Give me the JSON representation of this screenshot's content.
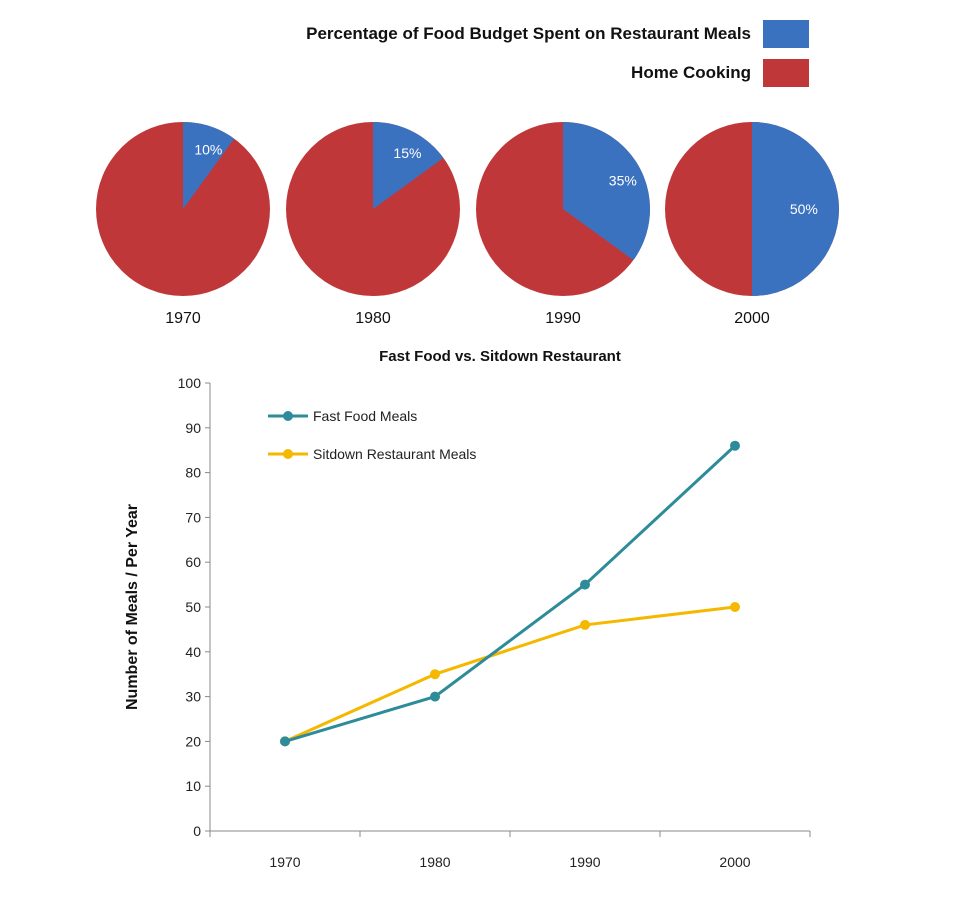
{
  "chart_data": [
    {
      "type": "pie",
      "legend": [
        {
          "label": "Percentage of Food Budget Spent on Restaurant Meals",
          "color": "#3a72c0"
        },
        {
          "label": "Home Cooking",
          "color": "#c0373a"
        }
      ],
      "legend_position": "top-right",
      "pies": [
        {
          "label": "1970",
          "restaurant": 10,
          "home": 90,
          "data_label": "10%"
        },
        {
          "label": "1980",
          "restaurant": 15,
          "home": 85,
          "data_label": "15%"
        },
        {
          "label": "1990",
          "restaurant": 35,
          "home": 65,
          "data_label": "35%"
        },
        {
          "label": "2000",
          "restaurant": 50,
          "home": 50,
          "data_label": "50%"
        }
      ]
    },
    {
      "type": "line",
      "title": "Fast Food vs. Sitdown Restaurant",
      "xlabel": "",
      "ylabel": "Number of Meals / Per Year",
      "categories": [
        "1970",
        "1980",
        "1990",
        "2000"
      ],
      "ylim": [
        0,
        100
      ],
      "yticks": [
        "0",
        "10",
        "20",
        "30",
        "40",
        "50",
        "60",
        "70",
        "80",
        "90",
        "100"
      ],
      "grid": false,
      "legend_position": "top-left",
      "series": [
        {
          "name": "Fast Food Meals",
          "color": "#2e8b9a",
          "values": [
            20,
            30,
            55,
            86
          ]
        },
        {
          "name": "Sitdown Restaurant Meals",
          "color": "#f5b800",
          "values": [
            20,
            35,
            46,
            50
          ]
        }
      ]
    }
  ]
}
